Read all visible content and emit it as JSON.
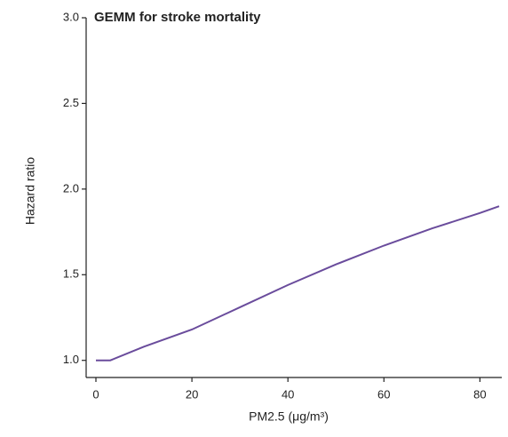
{
  "chart_data": {
    "type": "line",
    "title": "GEMM for stroke mortality",
    "xlabel": "PM2.5 (μg/m³)",
    "ylabel": "Hazard ratio",
    "x": [
      0,
      3,
      10,
      20,
      30,
      40,
      50,
      60,
      70,
      80,
      84
    ],
    "series": [
      {
        "name": "GEMM",
        "color": "#6a4c9c",
        "values": [
          1.0,
          1.0,
          1.08,
          1.18,
          1.31,
          1.44,
          1.56,
          1.67,
          1.77,
          1.86,
          1.9
        ]
      }
    ],
    "xlim": [
      0,
      84
    ],
    "xticks": [
      0,
      20,
      40,
      60,
      80
    ],
    "ylim": [
      0.9,
      3.0
    ],
    "yticks": [
      {
        "value": 1.0,
        "label": "1.0"
      },
      {
        "value": 1.5,
        "label": "1.5"
      },
      {
        "value": 2.0,
        "label": "2.0"
      },
      {
        "value": 2.5,
        "label": "2.5"
      },
      {
        "value": 3.0,
        "label": "3.0"
      }
    ],
    "grid": false
  }
}
